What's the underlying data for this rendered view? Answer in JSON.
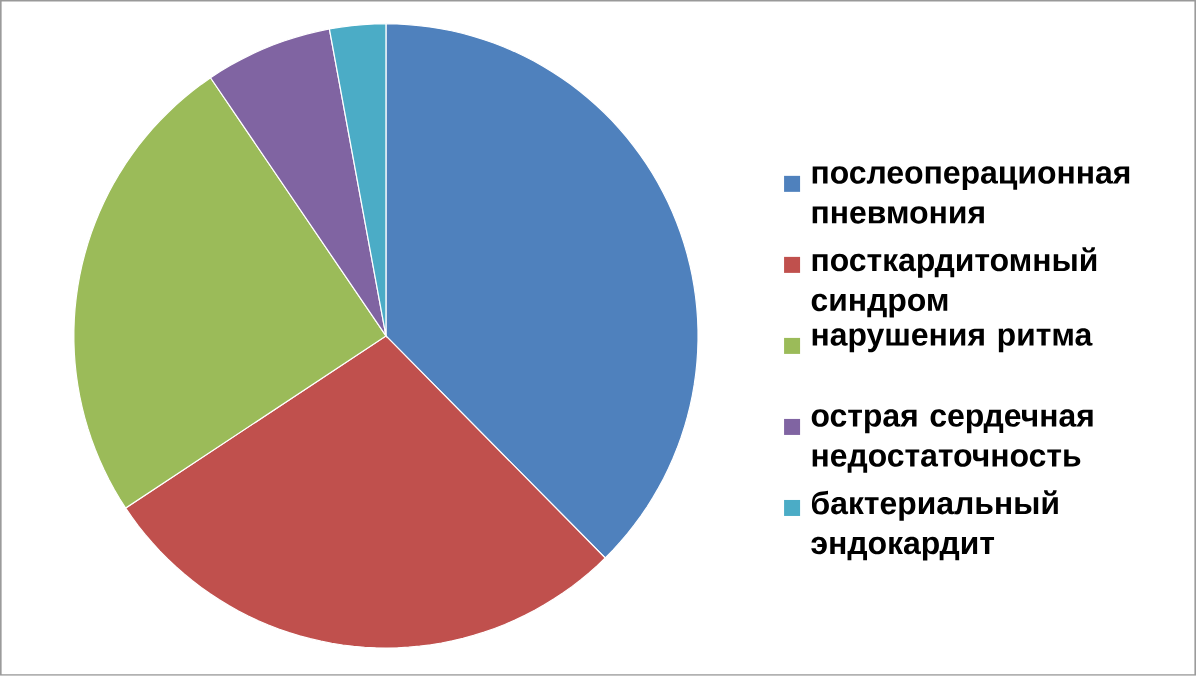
{
  "chart_data": {
    "type": "pie",
    "categories": [
      "послеоперационная пневмония",
      "посткардитомный синдром",
      "нарушения ритма",
      "острая сердечная недостаточность",
      "бактериальный эндокардит"
    ],
    "values": [
      37.6,
      28.1,
      24.8,
      6.6,
      2.9
    ],
    "colors": [
      "#4f81bd",
      "#c0504d",
      "#9bbb59",
      "#8064a2",
      "#4bacc6"
    ],
    "legend": "right"
  }
}
